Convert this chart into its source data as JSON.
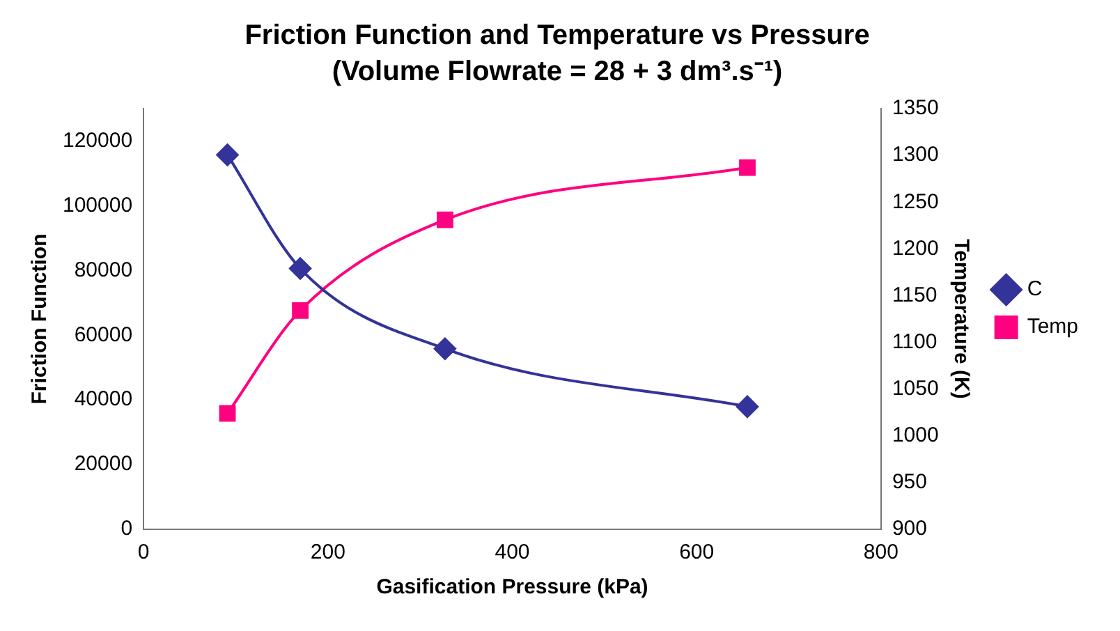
{
  "chart_data": {
    "type": "line",
    "title": "Friction Function and Temperature vs Pressure",
    "subtitle": "(Volume Flowrate = 28 + 3 dm³.s⁻¹)",
    "xlabel": "Gasification Pressure (kPa)",
    "ylabel": "Friction Function",
    "y2label": "Temperature (K)",
    "x": [
      91,
      170,
      327,
      655
    ],
    "series": [
      {
        "name": "C",
        "color": "#333399",
        "marker": "diamond",
        "values": [
          115700,
          80600,
          55800,
          37900
        ]
      },
      {
        "name": "Temp",
        "color": "#ff0080",
        "marker": "square",
        "axis": "y2",
        "values": [
          1024,
          1134,
          1231,
          1287
        ]
      }
    ],
    "xlim": [
      0,
      800
    ],
    "xticks": [
      0,
      200,
      400,
      600,
      800
    ],
    "ylim": [
      0,
      130000
    ],
    "yticks": [
      0,
      20000,
      40000,
      60000,
      80000,
      100000,
      120000
    ],
    "y2lim": [
      900,
      1350
    ],
    "y2ticks": [
      900,
      950,
      1000,
      1050,
      1100,
      1150,
      1200,
      1250,
      1300,
      1350
    ],
    "grid": false,
    "legend": "right",
    "line_style": "solid"
  }
}
